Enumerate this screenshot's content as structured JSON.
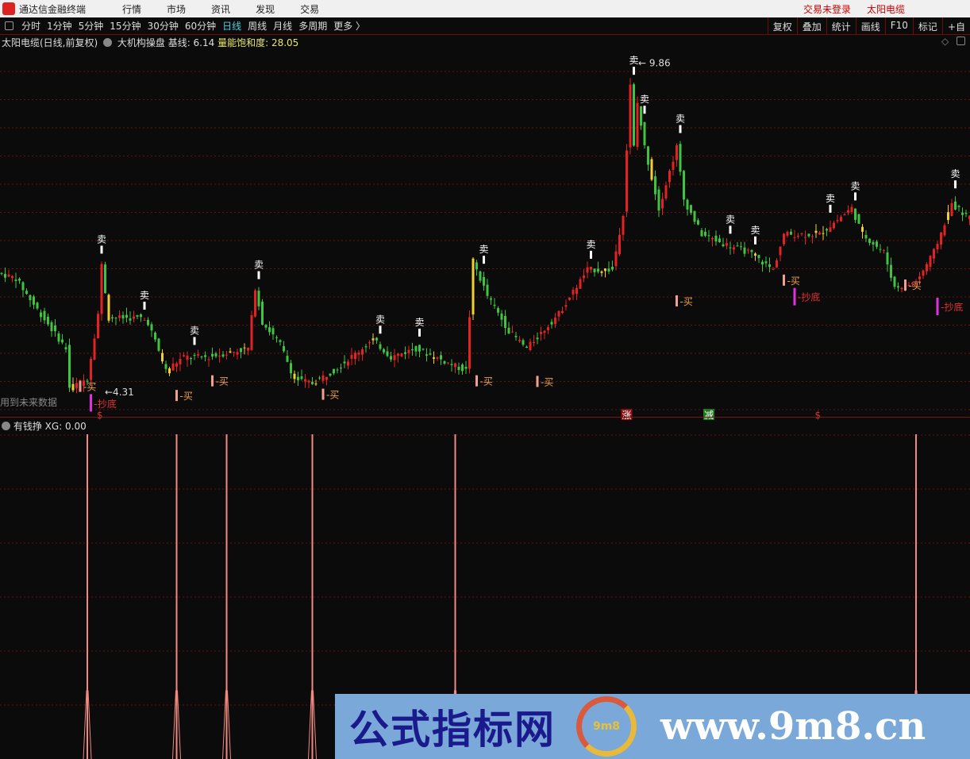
{
  "titlebar": {
    "app": "通达信金融终端",
    "menus": [
      "行情",
      "市场",
      "资讯",
      "发现",
      "交易"
    ],
    "login": "交易未登录",
    "stock": "太阳电缆"
  },
  "toolbar": {
    "periods": [
      "分时",
      "1分钟",
      "5分钟",
      "15分钟",
      "30分钟",
      "60分钟",
      "日线",
      "周线",
      "月线",
      "多周期",
      "更多 〉"
    ],
    "active": "日线",
    "tools": [
      "复权",
      "叠加",
      "统计",
      "画线",
      "F10",
      "标记",
      "+自"
    ]
  },
  "info": {
    "title": "太阳电缆(日线,前复权)",
    "indicator": "大机构操盘",
    "base_label": "基线: 6.14",
    "sat_label": "量能饱和度: 28.05"
  },
  "future_note": "用到未来数据",
  "sub": {
    "title": "有钱挣",
    "xg": "XG: 0.00"
  },
  "banner": {
    "cn": "公式指标网",
    "url": "www.9m8.cn",
    "seal": "9m8"
  },
  "colors": {
    "up": "#e52222",
    "down": "#3ec43e",
    "highlight": "#f0d030",
    "grid": "#6b1010",
    "spike": "#f08a80"
  },
  "chart_data": {
    "type": "candlestick",
    "price_range": [
      4.05,
      10.1
    ],
    "annotations": {
      "high": "9.86",
      "low": "4.31",
      "high_value": 9.86,
      "low_value": 4.31
    },
    "price_path": [
      [
        0,
        6.39
      ],
      [
        4,
        6.32
      ],
      [
        9,
        5.89
      ],
      [
        18,
        5.17
      ],
      [
        19,
        4.53
      ],
      [
        24,
        4.67
      ],
      [
        27,
        5.74
      ],
      [
        28,
        6.53
      ],
      [
        30,
        5.67
      ],
      [
        39,
        5.67
      ],
      [
        41,
        5.6
      ],
      [
        46,
        4.81
      ],
      [
        51,
        5.03
      ],
      [
        58,
        5.03
      ],
      [
        69,
        5.17
      ],
      [
        71,
        6.17
      ],
      [
        73,
        5.6
      ],
      [
        78,
        5.24
      ],
      [
        82,
        4.67
      ],
      [
        87,
        4.6
      ],
      [
        93,
        4.81
      ],
      [
        104,
        5.31
      ],
      [
        109,
        5.03
      ],
      [
        116,
        5.17
      ],
      [
        127,
        4.88
      ],
      [
        130,
        4.81
      ],
      [
        132,
        6.6
      ],
      [
        136,
        6.03
      ],
      [
        142,
        5.46
      ],
      [
        147,
        5.17
      ],
      [
        156,
        5.74
      ],
      [
        164,
        6.46
      ],
      [
        171,
        6.46
      ],
      [
        174,
        7.39
      ],
      [
        176,
        9.47
      ],
      [
        177,
        8.47
      ],
      [
        178,
        9.19
      ],
      [
        180,
        8.47
      ],
      [
        184,
        7.47
      ],
      [
        189,
        8.47
      ],
      [
        191,
        7.61
      ],
      [
        196,
        7.04
      ],
      [
        202,
        6.89
      ],
      [
        209,
        6.75
      ],
      [
        216,
        6.46
      ],
      [
        219,
        7.04
      ],
      [
        229,
        7.04
      ],
      [
        238,
        7.47
      ],
      [
        241,
        7.04
      ],
      [
        247,
        6.75
      ],
      [
        250,
        6.17
      ],
      [
        256,
        6.25
      ],
      [
        261,
        6.75
      ],
      [
        266,
        7.54
      ],
      [
        272,
        7.25
      ]
    ],
    "sell_signals": [
      28,
      40,
      54,
      72,
      106,
      117,
      135,
      165,
      177,
      180,
      190,
      204,
      211,
      232,
      239,
      267
    ],
    "buy_signals": [
      [
        22,
        4.55
      ],
      [
        49,
        4.4
      ],
      [
        59,
        4.64
      ],
      [
        90,
        4.42
      ],
      [
        133,
        4.64
      ],
      [
        150,
        4.63
      ],
      [
        189,
        5.95
      ],
      [
        219,
        6.29
      ],
      [
        253,
        6.21
      ]
    ],
    "bottom_signals": [
      [
        25,
        4.24
      ],
      [
        222,
        5.98
      ],
      [
        262,
        5.82
      ]
    ],
    "bottom_label": "抄底",
    "buy_label": "买",
    "sell_label": "卖",
    "markers": [
      {
        "bar": 28,
        "label": "$",
        "color": "#d33"
      },
      {
        "bar": 175,
        "label": "涨",
        "color": "#8a1010"
      },
      {
        "bar": 198,
        "label": "减",
        "color": "#1f7a1f"
      },
      {
        "bar": 229,
        "label": "$",
        "color": "#d33"
      }
    ],
    "xg_spikes": [
      24,
      49,
      63,
      87,
      127,
      256
    ]
  }
}
